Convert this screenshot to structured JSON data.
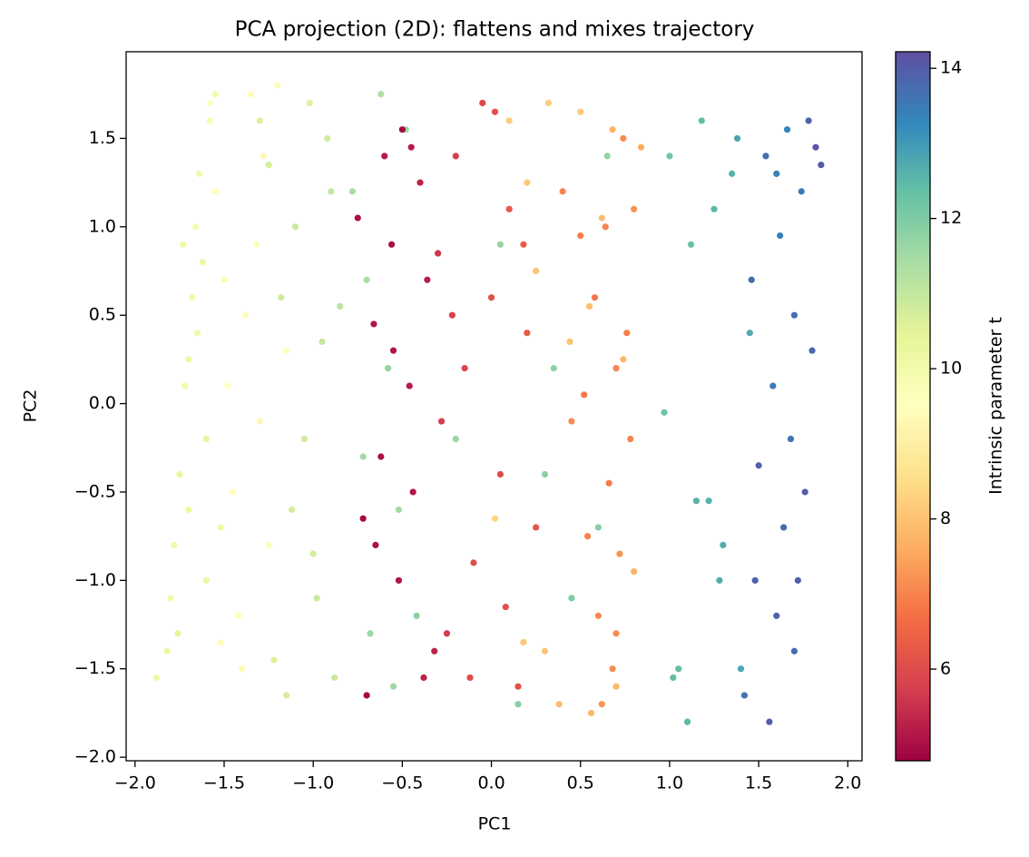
{
  "chart_data": {
    "type": "scatter",
    "title": "PCA projection (2D): flattens and mixes trajectory",
    "x_label": "PC1",
    "y_label": "PC2",
    "colorbar_label": "Intrinsic parameter t",
    "colormap": [
      "#9e0142",
      "#d53e4f",
      "#f46d43",
      "#fdae61",
      "#fee08b",
      "#ffffbf",
      "#e6f598",
      "#abdda4",
      "#66c2a5",
      "#3288bd",
      "#5e4fa2"
    ],
    "xlim": [
      -2.05,
      2.08
    ],
    "ylim": [
      -2.02,
      1.99
    ],
    "clim": [
      4.78,
      14.22
    ],
    "xticks": [
      {
        "value": -2,
        "label": "−2.0"
      },
      {
        "value": -1.5,
        "label": "−1.5"
      },
      {
        "value": -1,
        "label": "−1.0"
      },
      {
        "value": -0.5,
        "label": "−0.5"
      },
      {
        "value": 0,
        "label": "0.0"
      },
      0.5,
      {
        "value": 1,
        "label": "1.0"
      },
      1.5,
      {
        "value": 2,
        "label": "2.0"
      }
    ],
    "yticks": [
      {
        "value": -2,
        "label": "−2.0"
      },
      {
        "value": -1.5,
        "label": "−1.5"
      },
      {
        "value": -1,
        "label": "−1.0"
      },
      {
        "value": -0.5,
        "label": "−0.5"
      },
      {
        "value": 0,
        "label": "0.0"
      },
      0.5,
      {
        "value": 1,
        "label": "1.0"
      },
      1.5
    ],
    "cticks": [
      6,
      8,
      10,
      12,
      14
    ],
    "x": [
      -1.88,
      -1.82,
      -1.8,
      -1.78,
      -1.75,
      -1.72,
      -1.7,
      -1.68,
      -1.66,
      -1.64,
      -1.62,
      -1.6,
      -1.58,
      -1.55,
      -1.52,
      -1.7,
      -1.76,
      -1.65,
      -1.73,
      -1.6,
      -1.58,
      -1.55,
      -1.5,
      -1.48,
      -1.45,
      -1.42,
      -1.4,
      -1.35,
      -1.32,
      -1.3,
      -1.25,
      -1.2,
      -1.15,
      -1.52,
      -1.38,
      -1.28,
      -1.3,
      -1.25,
      -1.22,
      -1.18,
      -1.15,
      -1.1,
      -1.05,
      -1.02,
      -0.98,
      -0.95,
      -0.92,
      -0.88,
      -0.85,
      -1.12,
      -1.0,
      -0.9,
      -0.78,
      -0.72,
      -0.68,
      -0.62,
      -0.58,
      -0.52,
      -0.48,
      -0.42,
      -0.7,
      -0.55,
      0.05,
      0.15,
      0.3,
      0.45,
      0.6,
      0.65,
      -0.2,
      0.35,
      -0.75,
      -0.7,
      -0.66,
      -0.62,
      -0.6,
      -0.56,
      -0.52,
      -0.5,
      -0.46,
      -0.44,
      -0.4,
      -0.36,
      -0.32,
      -0.65,
      -0.55,
      -0.45,
      -0.72,
      -0.38,
      -0.3,
      -0.25,
      -0.2,
      -0.15,
      -0.1,
      -0.05,
      0.0,
      0.05,
      0.1,
      0.15,
      0.2,
      0.25,
      -0.28,
      -0.12,
      0.02,
      0.18,
      -0.22,
      0.08,
      0.02,
      0.1,
      0.18,
      0.25,
      0.32,
      0.38,
      0.44,
      0.5,
      0.56,
      0.62,
      0.68,
      0.74,
      0.8,
      0.84,
      0.3,
      0.55,
      0.7,
      0.2,
      0.4,
      0.45,
      0.5,
      0.54,
      0.58,
      0.6,
      0.64,
      0.66,
      0.68,
      0.7,
      0.72,
      0.74,
      0.76,
      0.78,
      0.62,
      0.52,
      0.7,
      0.8,
      0.97,
      1.0,
      1.05,
      1.1,
      1.12,
      1.18,
      1.22,
      1.25,
      1.3,
      1.35,
      1.4,
      1.45,
      1.02,
      1.15,
      1.28,
      1.38,
      1.42,
      1.46,
      1.5,
      1.54,
      1.56,
      1.58,
      1.6,
      1.62,
      1.64,
      1.66,
      1.68,
      1.7,
      1.72,
      1.74,
      1.76,
      1.78,
      1.8,
      1.82,
      1.85,
      1.48,
      1.6,
      1.7
    ],
    "y": [
      -1.55,
      -1.4,
      -1.1,
      -0.8,
      -0.4,
      0.1,
      0.25,
      0.6,
      1.0,
      1.3,
      0.8,
      -0.2,
      1.6,
      1.75,
      -0.7,
      -0.6,
      -1.3,
      0.4,
      0.9,
      -1.0,
      1.7,
      1.2,
      0.7,
      0.1,
      -0.5,
      -1.2,
      -1.5,
      1.75,
      0.9,
      -0.1,
      -0.8,
      1.8,
      0.3,
      -1.35,
      0.5,
      1.4,
      1.6,
      1.35,
      -1.45,
      0.6,
      -1.65,
      1.0,
      -0.2,
      1.7,
      -1.1,
      0.35,
      1.5,
      -1.55,
      0.55,
      -0.6,
      -0.85,
      1.2,
      1.2,
      -0.3,
      -1.3,
      1.75,
      0.2,
      -0.6,
      1.55,
      -1.2,
      0.7,
      -1.6,
      0.9,
      -1.7,
      -0.4,
      -1.1,
      -0.7,
      1.4,
      -0.2,
      0.2,
      1.05,
      -1.65,
      0.45,
      -0.3,
      1.4,
      0.9,
      -1.0,
      1.55,
      0.1,
      -0.5,
      1.25,
      0.7,
      -1.4,
      -0.8,
      0.3,
      1.45,
      -0.65,
      -1.55,
      0.85,
      -1.3,
      1.4,
      0.2,
      -0.9,
      1.7,
      0.6,
      -0.4,
      1.1,
      -1.6,
      0.4,
      -0.7,
      -0.1,
      -1.55,
      1.65,
      0.9,
      0.5,
      -1.15,
      -0.65,
      1.6,
      -1.35,
      0.75,
      1.7,
      -1.7,
      0.35,
      1.65,
      -1.75,
      1.05,
      1.55,
      0.25,
      -0.95,
      1.45,
      -1.4,
      0.55,
      -1.6,
      1.25,
      1.2,
      -0.1,
      0.95,
      -0.75,
      0.6,
      -1.2,
      1.0,
      -0.45,
      -1.5,
      0.2,
      -0.85,
      1.5,
      0.4,
      -0.2,
      -1.7,
      0.05,
      -1.3,
      1.1,
      -0.05,
      1.4,
      -1.5,
      -1.8,
      0.9,
      1.6,
      -0.55,
      1.1,
      -0.8,
      1.3,
      -1.5,
      0.4,
      -1.55,
      -0.55,
      -1.0,
      1.5,
      -1.65,
      0.7,
      -0.35,
      1.4,
      -1.8,
      0.1,
      -1.2,
      0.95,
      -0.7,
      1.55,
      -0.2,
      0.5,
      -1.0,
      1.2,
      -0.5,
      1.6,
      0.3,
      1.45,
      1.35,
      -1.0,
      1.3,
      -1.4
    ],
    "c": [
      10.1,
      10.2,
      10.0,
      10.1,
      10.3,
      10.0,
      10.2,
      10.1,
      9.9,
      10.0,
      10.2,
      10.3,
      9.8,
      9.9,
      10.1,
      10.2,
      10.4,
      10.0,
      10.1,
      10.2,
      9.5,
      9.4,
      9.3,
      9.5,
      9.4,
      9.6,
      9.3,
      9.4,
      9.5,
      9.3,
      9.6,
      9.4,
      9.5,
      9.6,
      9.4,
      9.3,
      10.6,
      10.7,
      10.6,
      10.8,
      10.7,
      10.9,
      10.8,
      10.6,
      10.9,
      11.0,
      10.8,
      10.9,
      11.1,
      10.7,
      10.8,
      11.0,
      11.4,
      11.5,
      11.6,
      11.3,
      11.7,
      11.5,
      11.6,
      11.8,
      11.4,
      11.6,
      11.7,
      11.9,
      11.8,
      12.0,
      11.9,
      11.7,
      11.6,
      11.8,
      5.0,
      4.9,
      5.1,
      5.0,
      5.2,
      5.0,
      5.1,
      4.9,
      5.2,
      5.1,
      5.3,
      5.2,
      5.3,
      5.0,
      5.1,
      5.2,
      4.9,
      5.3,
      5.6,
      5.7,
      5.8,
      5.9,
      6.0,
      5.9,
      6.1,
      6.0,
      6.2,
      6.1,
      6.3,
      6.2,
      5.7,
      6.0,
      6.1,
      6.3,
      5.8,
      6.1,
      8.3,
      8.2,
      8.1,
      8.0,
      8.2,
      7.9,
      8.0,
      8.1,
      7.8,
      7.9,
      7.7,
      7.8,
      7.7,
      7.6,
      8.0,
      7.9,
      7.8,
      8.1,
      7.0,
      7.1,
      6.9,
      7.0,
      6.8,
      7.1,
      7.0,
      6.9,
      7.1,
      7.0,
      7.2,
      7.1,
      6.9,
      7.0,
      7.2,
      6.8,
      7.1,
      7.2,
      12.3,
      12.2,
      12.4,
      12.5,
      12.3,
      12.4,
      12.6,
      12.5,
      12.7,
      12.6,
      12.8,
      12.7,
      12.4,
      12.6,
      12.7,
      12.8,
      13.6,
      13.8,
      13.9,
      13.7,
      14.0,
      13.5,
      13.9,
      13.4,
      13.8,
      13.3,
      13.6,
      13.7,
      13.9,
      13.5,
      14.0,
      13.9,
      13.8,
      14.1,
      14.0,
      13.9,
      13.4,
      13.7
    ]
  }
}
